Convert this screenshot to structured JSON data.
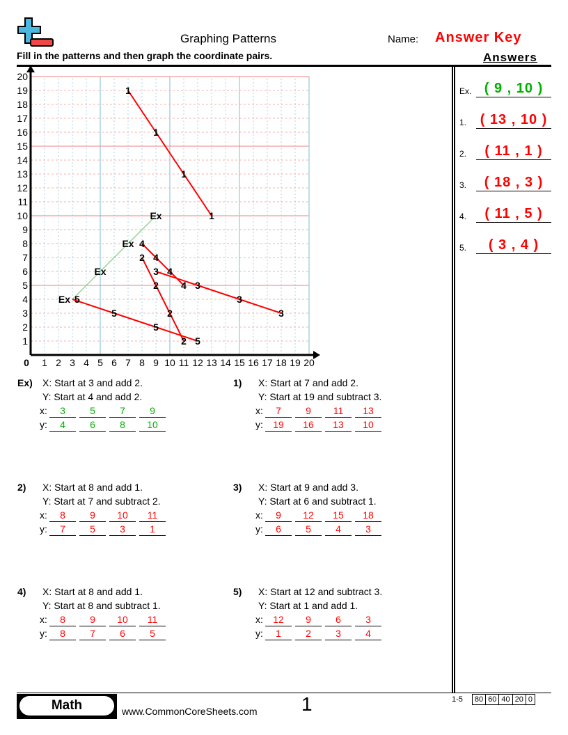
{
  "header": {
    "title": "Graphing Patterns",
    "name_label": "Name:",
    "name_value": "Answer Key",
    "instructions": "Fill in the patterns and then graph the coordinate pairs."
  },
  "colors": {
    "answer": "#ff0000",
    "example": "#00b000",
    "logo_blue": "#4cb8e0",
    "logo_red": "#f04848"
  },
  "answers": {
    "heading": "Answers",
    "items": [
      {
        "label": "Ex.",
        "value": "( 9 , 10 )",
        "color": "#00b000"
      },
      {
        "label": "1.",
        "value": "( 13 , 10 )",
        "color": "#ff0000"
      },
      {
        "label": "2.",
        "value": "( 11 , 1 )",
        "color": "#ff0000"
      },
      {
        "label": "3.",
        "value": "( 18 , 3 )",
        "color": "#ff0000"
      },
      {
        "label": "4.",
        "value": "( 11 , 5 )",
        "color": "#ff0000"
      },
      {
        "label": "5.",
        "value": "( 3 , 4 )",
        "color": "#ff0000"
      }
    ]
  },
  "graph": {
    "x_ticks": [
      "0",
      "1",
      "2",
      "3",
      "4",
      "5",
      "6",
      "7",
      "8",
      "9",
      "10",
      "11",
      "12",
      "13",
      "14",
      "15",
      "16",
      "17",
      "18",
      "19",
      "20"
    ],
    "y_ticks": [
      "1",
      "2",
      "3",
      "4",
      "5",
      "6",
      "7",
      "8",
      "9",
      "10",
      "11",
      "12",
      "13",
      "14",
      "15",
      "16",
      "17",
      "18",
      "19",
      "20"
    ],
    "xlim": [
      0,
      20
    ],
    "ylim": [
      0,
      20
    ],
    "series": [
      {
        "label": "Ex",
        "color": "#90d890",
        "points": [
          [
            3,
            4
          ],
          [
            5,
            6
          ],
          [
            7,
            8
          ],
          [
            9,
            10
          ]
        ]
      },
      {
        "label": "1",
        "color": "#ff0000",
        "points": [
          [
            7,
            19
          ],
          [
            9,
            16
          ],
          [
            11,
            13
          ],
          [
            13,
            10
          ]
        ]
      },
      {
        "label": "2",
        "color": "#ff0000",
        "points": [
          [
            8,
            7
          ],
          [
            9,
            5
          ],
          [
            10,
            3
          ],
          [
            11,
            1
          ]
        ]
      },
      {
        "label": "3",
        "color": "#ff0000",
        "points": [
          [
            9,
            6
          ],
          [
            12,
            5
          ],
          [
            15,
            4
          ],
          [
            18,
            3
          ]
        ]
      },
      {
        "label": "4",
        "color": "#ff0000",
        "points": [
          [
            8,
            8
          ],
          [
            9,
            7
          ],
          [
            10,
            6
          ],
          [
            11,
            5
          ]
        ]
      },
      {
        "label": "5",
        "color": "#ff0000",
        "points": [
          [
            12,
            1
          ],
          [
            9,
            2
          ],
          [
            6,
            3
          ],
          [
            3,
            4
          ]
        ]
      }
    ]
  },
  "problems": [
    {
      "num": "Ex)",
      "x_rule": "X: Start at 3 and add 2.",
      "y_rule": "Y: Start at 4 and add 2.",
      "x": [
        "3",
        "5",
        "7",
        "9"
      ],
      "y": [
        "4",
        "6",
        "8",
        "10"
      ],
      "color": "#00b000"
    },
    {
      "num": "1)",
      "x_rule": "X: Start at 7 and add 2.",
      "y_rule": "Y: Start at 19 and subtract 3.",
      "x": [
        "7",
        "9",
        "11",
        "13"
      ],
      "y": [
        "19",
        "16",
        "13",
        "10"
      ],
      "color": "#ff0000"
    },
    {
      "num": "2)",
      "x_rule": "X: Start at 8 and add 1.",
      "y_rule": "Y: Start at 7 and subtract 2.",
      "x": [
        "8",
        "9",
        "10",
        "11"
      ],
      "y": [
        "7",
        "5",
        "3",
        "1"
      ],
      "color": "#ff0000"
    },
    {
      "num": "3)",
      "x_rule": "X: Start at 9 and add 3.",
      "y_rule": "Y: Start at 6 and subtract 1.",
      "x": [
        "9",
        "12",
        "15",
        "18"
      ],
      "y": [
        "6",
        "5",
        "4",
        "3"
      ],
      "color": "#ff0000"
    },
    {
      "num": "4)",
      "x_rule": "X: Start at 8 and add 1.",
      "y_rule": "Y: Start at 8 and subtract 1.",
      "x": [
        "8",
        "9",
        "10",
        "11"
      ],
      "y": [
        "8",
        "7",
        "6",
        "5"
      ],
      "color": "#ff0000"
    },
    {
      "num": "5)",
      "x_rule": "X: Start at 12 and subtract 3.",
      "y_rule": "Y: Start at 1 and add 1.",
      "x": [
        "12",
        "9",
        "6",
        "3"
      ],
      "y": [
        "1",
        "2",
        "3",
        "4"
      ],
      "color": "#ff0000"
    }
  ],
  "row_labels": {
    "x": "x:",
    "y": "y:"
  },
  "footer": {
    "subject": "Math",
    "url": "www.CommonCoreSheets.com",
    "page": "1",
    "score_range": "1-5",
    "scores": [
      "80",
      "60",
      "40",
      "20",
      "0"
    ]
  }
}
